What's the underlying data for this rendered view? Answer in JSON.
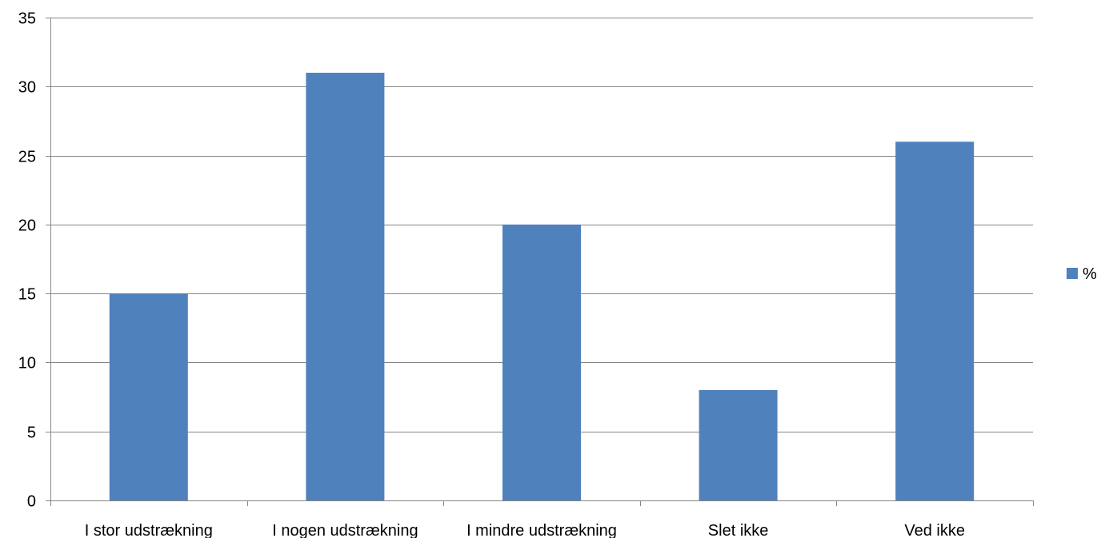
{
  "chart_data": {
    "type": "bar",
    "categories": [
      "I stor udstrækning",
      "I nogen udstrækning",
      "I mindre udstrækning",
      "Slet ikke",
      "Ved ikke"
    ],
    "series": [
      {
        "name": "%",
        "values": [
          15,
          31,
          20,
          8,
          26
        ],
        "color": "#4F81BD"
      }
    ],
    "title": "",
    "xlabel": "",
    "ylabel": "",
    "ylim": [
      0,
      35
    ],
    "yticks": [
      0,
      5,
      10,
      15,
      20,
      25,
      30,
      35
    ],
    "grid": true,
    "legend": "right",
    "colors": {
      "bar": "#4F81BD",
      "gridline": "#868686",
      "axis": "#868686",
      "text": "#000000"
    }
  }
}
